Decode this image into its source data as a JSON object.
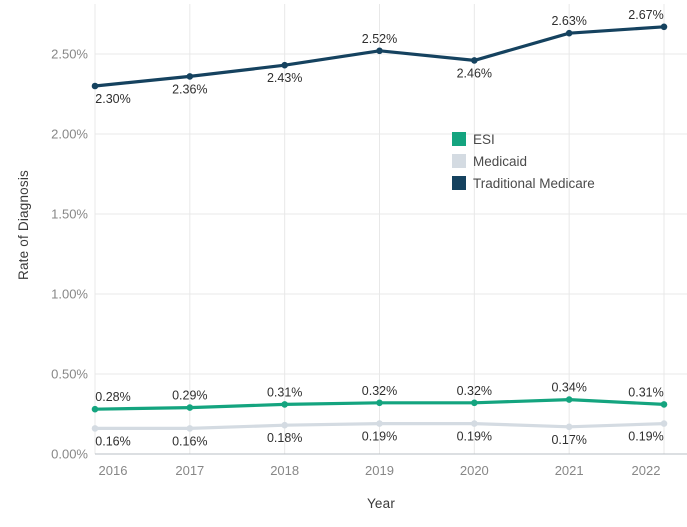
{
  "chart_data": {
    "type": "line",
    "title": "",
    "xlabel": "Year",
    "ylabel": "Rate of Diagnosis",
    "categories": [
      "2016",
      "2017",
      "2018",
      "2019",
      "2020",
      "2021",
      "2022"
    ],
    "y_axis": {
      "tick_labels": [
        "0.00%",
        "0.50%",
        "1.00%",
        "1.50%",
        "2.00%",
        "2.50%"
      ],
      "tick_values": [
        0,
        0.5,
        1.0,
        1.5,
        2.0,
        2.5
      ],
      "range": [
        0,
        2.8
      ]
    },
    "grid": true,
    "legend": {
      "position": "inside-upper-right",
      "entries": [
        "ESI",
        "Medicaid",
        "Traditional Medicare"
      ]
    },
    "series": [
      {
        "name": "ESI",
        "color": "#14a47f",
        "values": [
          0.28,
          0.29,
          0.31,
          0.32,
          0.32,
          0.34,
          0.31
        ],
        "point_labels": [
          "0.28%",
          "0.29%",
          "0.31%",
          "0.32%",
          "0.32%",
          "0.34%",
          "0.31%"
        ],
        "label_side": [
          "above",
          "above",
          "above",
          "above",
          "above",
          "above",
          "above"
        ]
      },
      {
        "name": "Medicaid",
        "color": "#d4dbe2",
        "values": [
          0.16,
          0.16,
          0.18,
          0.19,
          0.19,
          0.17,
          0.19
        ],
        "point_labels": [
          "0.16%",
          "0.16%",
          "0.18%",
          "0.19%",
          "0.19%",
          "0.17%",
          "0.19%"
        ],
        "label_side": [
          "below",
          "below",
          "below",
          "below",
          "below",
          "below",
          "below"
        ]
      },
      {
        "name": "Traditional Medicare",
        "color": "#15425f",
        "values": [
          2.3,
          2.36,
          2.43,
          2.52,
          2.46,
          2.63,
          2.67
        ],
        "point_labels": [
          "2.30%",
          "2.36%",
          "2.43%",
          "2.52%",
          "2.46%",
          "2.63%",
          "2.67%"
        ],
        "label_side": [
          "below",
          "below",
          "below",
          "above",
          "below",
          "above",
          "above"
        ]
      }
    ]
  },
  "colors": {
    "background": "#ffffff",
    "grid_line": "#e8e8e8",
    "axis_line": "#b9bfc4",
    "tick_label": "#878787",
    "data_label": "#2f2f2f",
    "legend_label": "#4a4a4a",
    "axis_title": "#3a3a3a"
  }
}
